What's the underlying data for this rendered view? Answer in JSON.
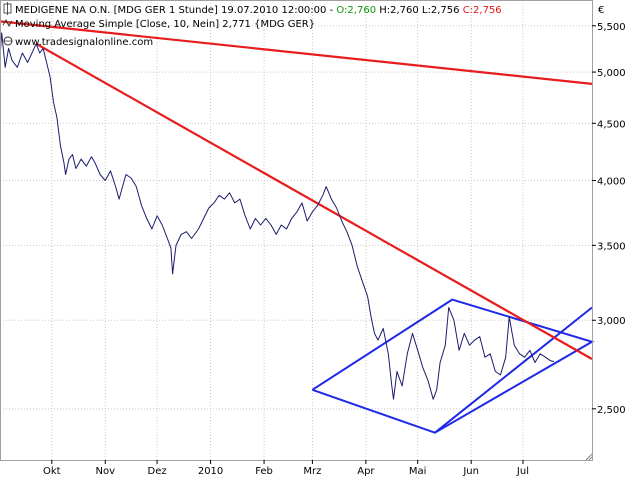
{
  "header": {
    "line1_prefix": "MEDIGENE NA O.N. [MDG GER  1 Stunde] 19.07.2010 12:00:00 - ",
    "line1_open": "O:2,760",
    "line1_mid": " H:2,760 L:2,756 ",
    "line1_close": "C:2,756",
    "line2": "Moving Average Simple [Close, 10, Nein] 2,771 {MDG GER}",
    "line3": "www.tradesignalonline.com",
    "currency": "€"
  },
  "colors": {
    "price_line": "#1c1c6e",
    "trendline_red": "#e81c1c",
    "pattern_blue": "#1e28e6",
    "open_green": "#0a9a0a",
    "close_red": "#e01818",
    "grid": "#c8c8c8"
  },
  "chart_data": {
    "type": "line",
    "title": "MEDIGENE NA O.N. [MDG GER  1 Stunde]",
    "y_scale": "log",
    "ylim": [
      2.25,
      5.8
    ],
    "yticks": [
      2.5,
      3.0,
      3.5,
      4.0,
      4.5,
      5.0,
      5.5
    ],
    "ytick_labels": [
      "2,500",
      "3,000",
      "3,500",
      "4,000",
      "4,500",
      "5,000",
      "5,500"
    ],
    "xlim": [
      "2009-09-01",
      "2010-08-10"
    ],
    "xticks": [
      {
        "label": "Okt",
        "date": "2009-10-01"
      },
      {
        "label": "Nov",
        "date": "2009-11-01"
      },
      {
        "label": "Dez",
        "date": "2009-12-01"
      },
      {
        "label": "2010",
        "date": "2010-01-01"
      },
      {
        "label": "Feb",
        "date": "2010-02-01"
      },
      {
        "label": "Mrz",
        "date": "2010-03-01"
      },
      {
        "label": "Apr",
        "date": "2010-04-01"
      },
      {
        "label": "Mai",
        "date": "2010-05-01"
      },
      {
        "label": "Jun",
        "date": "2010-06-01"
      },
      {
        "label": "Jul",
        "date": "2010-07-01"
      }
    ],
    "grid": true,
    "series": [
      {
        "values": [
          [
            "2009-09-01",
            5.15
          ],
          [
            "2009-09-02",
            5.42
          ],
          [
            "2009-09-04",
            5.05
          ],
          [
            "2009-09-06",
            5.25
          ],
          [
            "2009-09-08",
            5.12
          ],
          [
            "2009-09-11",
            5.05
          ],
          [
            "2009-09-14",
            5.2
          ],
          [
            "2009-09-17",
            5.1
          ],
          [
            "2009-09-20",
            5.22
          ],
          [
            "2009-09-22",
            5.3
          ],
          [
            "2009-09-24",
            5.2
          ],
          [
            "2009-09-26",
            5.25
          ],
          [
            "2009-09-28",
            5.1
          ],
          [
            "2009-09-30",
            4.95
          ],
          [
            "2009-10-02",
            4.7
          ],
          [
            "2009-10-04",
            4.55
          ],
          [
            "2009-10-06",
            4.3
          ],
          [
            "2009-10-08",
            4.15
          ],
          [
            "2009-10-09",
            4.05
          ],
          [
            "2009-10-11",
            4.18
          ],
          [
            "2009-10-13",
            4.22
          ],
          [
            "2009-10-15",
            4.1
          ],
          [
            "2009-10-18",
            4.18
          ],
          [
            "2009-10-21",
            4.12
          ],
          [
            "2009-10-24",
            4.2
          ],
          [
            "2009-10-26",
            4.15
          ],
          [
            "2009-10-29",
            4.05
          ],
          [
            "2009-11-01",
            4.0
          ],
          [
            "2009-11-04",
            4.08
          ],
          [
            "2009-11-07",
            3.95
          ],
          [
            "2009-11-09",
            3.85
          ],
          [
            "2009-11-11",
            3.95
          ],
          [
            "2009-11-13",
            4.05
          ],
          [
            "2009-11-16",
            4.02
          ],
          [
            "2009-11-19",
            3.95
          ],
          [
            "2009-11-22",
            3.8
          ],
          [
            "2009-11-25",
            3.7
          ],
          [
            "2009-11-28",
            3.62
          ],
          [
            "2009-12-01",
            3.72
          ],
          [
            "2009-12-04",
            3.65
          ],
          [
            "2009-12-07",
            3.55
          ],
          [
            "2009-12-09",
            3.48
          ],
          [
            "2009-12-10",
            3.3
          ],
          [
            "2009-12-12",
            3.5
          ],
          [
            "2009-12-15",
            3.58
          ],
          [
            "2009-12-18",
            3.6
          ],
          [
            "2009-12-21",
            3.55
          ],
          [
            "2009-12-25",
            3.62
          ],
          [
            "2009-12-28",
            3.7
          ],
          [
            "2009-12-31",
            3.78
          ],
          [
            "2010-01-03",
            3.82
          ],
          [
            "2010-01-06",
            3.88
          ],
          [
            "2010-01-09",
            3.85
          ],
          [
            "2010-01-12",
            3.9
          ],
          [
            "2010-01-15",
            3.82
          ],
          [
            "2010-01-18",
            3.85
          ],
          [
            "2010-01-21",
            3.72
          ],
          [
            "2010-01-24",
            3.62
          ],
          [
            "2010-01-27",
            3.7
          ],
          [
            "2010-01-30",
            3.65
          ],
          [
            "2010-02-02",
            3.7
          ],
          [
            "2010-02-05",
            3.65
          ],
          [
            "2010-02-08",
            3.58
          ],
          [
            "2010-02-11",
            3.65
          ],
          [
            "2010-02-14",
            3.62
          ],
          [
            "2010-02-17",
            3.7
          ],
          [
            "2010-02-20",
            3.75
          ],
          [
            "2010-02-23",
            3.82
          ],
          [
            "2010-02-26",
            3.68
          ],
          [
            "2010-03-01",
            3.75
          ],
          [
            "2010-03-04",
            3.8
          ],
          [
            "2010-03-07",
            3.88
          ],
          [
            "2010-03-09",
            3.95
          ],
          [
            "2010-03-12",
            3.85
          ],
          [
            "2010-03-15",
            3.78
          ],
          [
            "2010-03-18",
            3.68
          ],
          [
            "2010-03-21",
            3.6
          ],
          [
            "2010-03-24",
            3.5
          ],
          [
            "2010-03-27",
            3.35
          ],
          [
            "2010-03-30",
            3.25
          ],
          [
            "2010-04-02",
            3.15
          ],
          [
            "2010-04-04",
            3.02
          ],
          [
            "2010-04-06",
            2.92
          ],
          [
            "2010-04-08",
            2.88
          ],
          [
            "2010-04-11",
            2.95
          ],
          [
            "2010-04-14",
            2.8
          ],
          [
            "2010-04-16",
            2.62
          ],
          [
            "2010-04-17",
            2.55
          ],
          [
            "2010-04-19",
            2.7
          ],
          [
            "2010-04-22",
            2.62
          ],
          [
            "2010-04-25",
            2.8
          ],
          [
            "2010-04-28",
            2.92
          ],
          [
            "2010-05-01",
            2.82
          ],
          [
            "2010-05-04",
            2.72
          ],
          [
            "2010-05-07",
            2.65
          ],
          [
            "2010-05-10",
            2.55
          ],
          [
            "2010-05-12",
            2.6
          ],
          [
            "2010-05-14",
            2.75
          ],
          [
            "2010-05-17",
            2.85
          ],
          [
            "2010-05-19",
            3.08
          ],
          [
            "2010-05-22",
            3.0
          ],
          [
            "2010-05-25",
            2.82
          ],
          [
            "2010-05-28",
            2.92
          ],
          [
            "2010-05-31",
            2.85
          ],
          [
            "2010-06-03",
            2.88
          ],
          [
            "2010-06-06",
            2.9
          ],
          [
            "2010-06-09",
            2.78
          ],
          [
            "2010-06-12",
            2.8
          ],
          [
            "2010-06-15",
            2.7
          ],
          [
            "2010-06-18",
            2.68
          ],
          [
            "2010-06-21",
            2.78
          ],
          [
            "2010-06-23",
            3.02
          ],
          [
            "2010-06-26",
            2.85
          ],
          [
            "2010-06-29",
            2.8
          ],
          [
            "2010-07-02",
            2.78
          ],
          [
            "2010-07-05",
            2.82
          ],
          [
            "2010-07-08",
            2.75
          ],
          [
            "2010-07-11",
            2.8
          ],
          [
            "2010-07-14",
            2.78
          ],
          [
            "2010-07-17",
            2.76
          ],
          [
            "2010-07-19",
            2.756
          ]
        ]
      }
    ],
    "trendlines": [
      {
        "color": "#e81c1c",
        "points": [
          [
            "2009-09-01",
            5.55
          ],
          [
            "2010-08-10",
            4.88
          ]
        ]
      },
      {
        "color": "#e81c1c",
        "points": [
          [
            "2009-09-22",
            5.3
          ],
          [
            "2010-08-10",
            2.77
          ]
        ]
      }
    ],
    "patterns": [
      {
        "type": "diamond",
        "color": "#1e28e6",
        "points": [
          [
            "2010-03-01",
            2.6
          ],
          [
            "2010-05-21",
            3.13
          ],
          [
            "2010-08-10",
            2.87
          ],
          [
            "2010-05-11",
            2.38
          ],
          [
            "2010-03-01",
            2.6
          ]
        ]
      },
      {
        "type": "line",
        "color": "#1e28e6",
        "points": [
          [
            "2010-05-11",
            2.38
          ],
          [
            "2010-08-10",
            3.08
          ]
        ]
      }
    ]
  }
}
